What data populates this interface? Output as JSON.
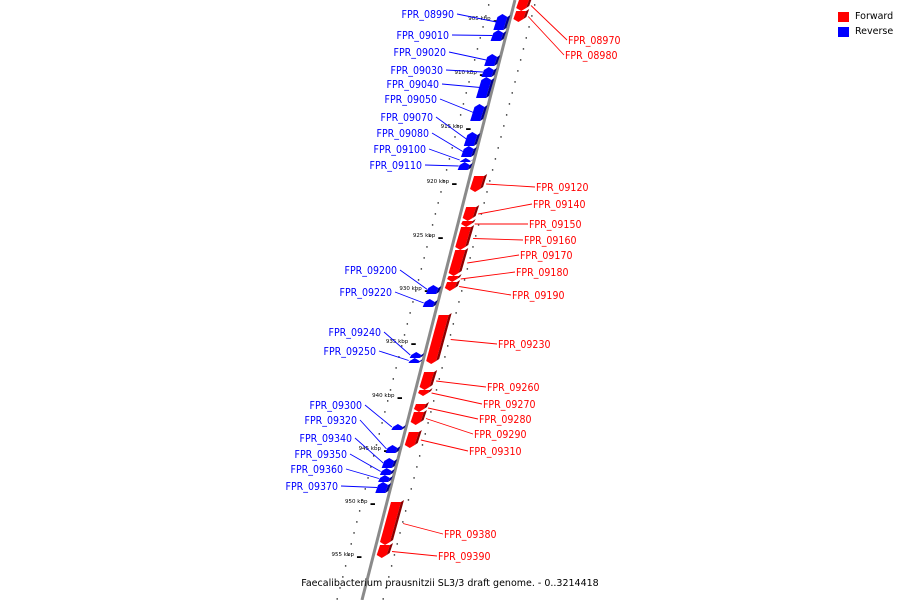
{
  "legend": {
    "forward_label": "Forward",
    "reverse_label": "Reverse",
    "forward_color": "#ff0000",
    "reverse_color": "#0000ff"
  },
  "caption": "Faecalibacterium prausnitzii SL3/3 draft genome. - 0..3214418",
  "ticks": [
    "905 kbp",
    "910 kbp",
    "915 kbp",
    "920 kbp",
    "925 kbp",
    "930 kbp",
    "935 kbp",
    "940 kbp",
    "945 kbp",
    "950 kbp",
    "955 kbp"
  ],
  "genes": [
    {
      "name": "FPR_08970",
      "strand": "forward"
    },
    {
      "name": "FPR_08980",
      "strand": "forward"
    },
    {
      "name": "FPR_08990",
      "strand": "reverse"
    },
    {
      "name": "FPR_09010",
      "strand": "reverse"
    },
    {
      "name": "FPR_09020",
      "strand": "reverse"
    },
    {
      "name": "FPR_09030",
      "strand": "reverse"
    },
    {
      "name": "FPR_09040",
      "strand": "reverse"
    },
    {
      "name": "FPR_09050",
      "strand": "reverse"
    },
    {
      "name": "FPR_09070",
      "strand": "reverse"
    },
    {
      "name": "FPR_09080",
      "strand": "reverse"
    },
    {
      "name": "FPR_09100",
      "strand": "reverse"
    },
    {
      "name": "FPR_09110",
      "strand": "reverse"
    },
    {
      "name": "FPR_09120",
      "strand": "forward"
    },
    {
      "name": "FPR_09140",
      "strand": "forward"
    },
    {
      "name": "FPR_09150",
      "strand": "forward"
    },
    {
      "name": "FPR_09160",
      "strand": "forward"
    },
    {
      "name": "FPR_09170",
      "strand": "forward"
    },
    {
      "name": "FPR_09180",
      "strand": "forward"
    },
    {
      "name": "FPR_09190",
      "strand": "forward"
    },
    {
      "name": "FPR_09200",
      "strand": "reverse"
    },
    {
      "name": "FPR_09220",
      "strand": "reverse"
    },
    {
      "name": "FPR_09230",
      "strand": "forward"
    },
    {
      "name": "FPR_09240",
      "strand": "reverse"
    },
    {
      "name": "FPR_09250",
      "strand": "reverse"
    },
    {
      "name": "FPR_09260",
      "strand": "forward"
    },
    {
      "name": "FPR_09270",
      "strand": "forward"
    },
    {
      "name": "FPR_09280",
      "strand": "forward"
    },
    {
      "name": "FPR_09290",
      "strand": "forward"
    },
    {
      "name": "FPR_09300",
      "strand": "reverse"
    },
    {
      "name": "FPR_09310",
      "strand": "forward"
    },
    {
      "name": "FPR_09320",
      "strand": "reverse"
    },
    {
      "name": "FPR_09340",
      "strand": "reverse"
    },
    {
      "name": "FPR_09350",
      "strand": "reverse"
    },
    {
      "name": "FPR_09360",
      "strand": "reverse"
    },
    {
      "name": "FPR_09370",
      "strand": "reverse"
    },
    {
      "name": "FPR_09380",
      "strand": "forward"
    },
    {
      "name": "FPR_09390",
      "strand": "forward"
    }
  ]
}
